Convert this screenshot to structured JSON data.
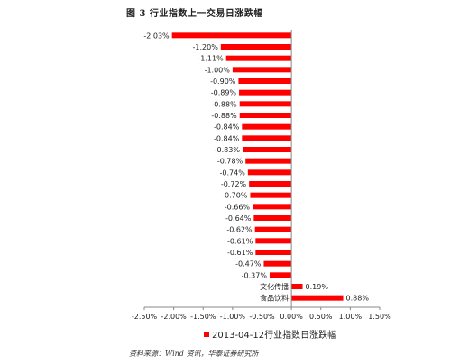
{
  "figure_title": "图 3   行业指数上一交易日涨跌幅",
  "source_note": "资料来源：Wind 资讯，华泰证券研究所",
  "legend_label": "2013-04-12行业指数日涨跌幅",
  "colors": {
    "bar": "#ff0000",
    "axis": "#888888"
  },
  "chart_data": {
    "type": "bar",
    "orientation": "horizontal",
    "x_axis": {
      "min": -2.5,
      "max": 1.5,
      "ticks": [
        -2.5,
        -2.0,
        -1.5,
        -1.0,
        -0.5,
        0.0,
        0.5,
        1.0,
        1.5
      ],
      "tick_labels": [
        "-2.50%",
        "-2.00%",
        "-1.50%",
        "-1.00%",
        "-0.50%",
        "0.00%",
        "0.50%",
        "1.00%",
        "1.50%"
      ]
    },
    "categories": [
      "",
      "",
      "",
      "",
      "",
      "",
      "",
      "",
      "",
      "",
      "",
      "",
      "",
      "",
      "",
      "",
      "",
      "",
      "",
      "",
      "",
      "",
      "文化传播",
      "食品饮料"
    ],
    "values": [
      -2.03,
      -1.2,
      -1.11,
      -1.0,
      -0.9,
      -0.89,
      -0.88,
      -0.88,
      -0.84,
      -0.84,
      -0.83,
      -0.78,
      -0.74,
      -0.72,
      -0.7,
      -0.66,
      -0.64,
      -0.62,
      -0.61,
      -0.61,
      -0.47,
      -0.37,
      0.19,
      0.88
    ],
    "value_labels": [
      "-2.03%",
      "-1.20%",
      "-1.11%",
      "-1.00%",
      "-0.90%",
      "-0.89%",
      "-0.88%",
      "-0.88%",
      "-0.84%",
      "-0.84%",
      "-0.83%",
      "-0.78%",
      "-0.74%",
      "-0.72%",
      "-0.70%",
      "-0.66%",
      "-0.64%",
      "-0.62%",
      "-0.61%",
      "-0.61%",
      "-0.47%",
      "-0.37%",
      "0.19%",
      "0.88%"
    ],
    "series": [
      {
        "name": "2013-04-12行业指数日涨跌幅"
      }
    ],
    "legend_position": "bottom",
    "grid": false
  }
}
